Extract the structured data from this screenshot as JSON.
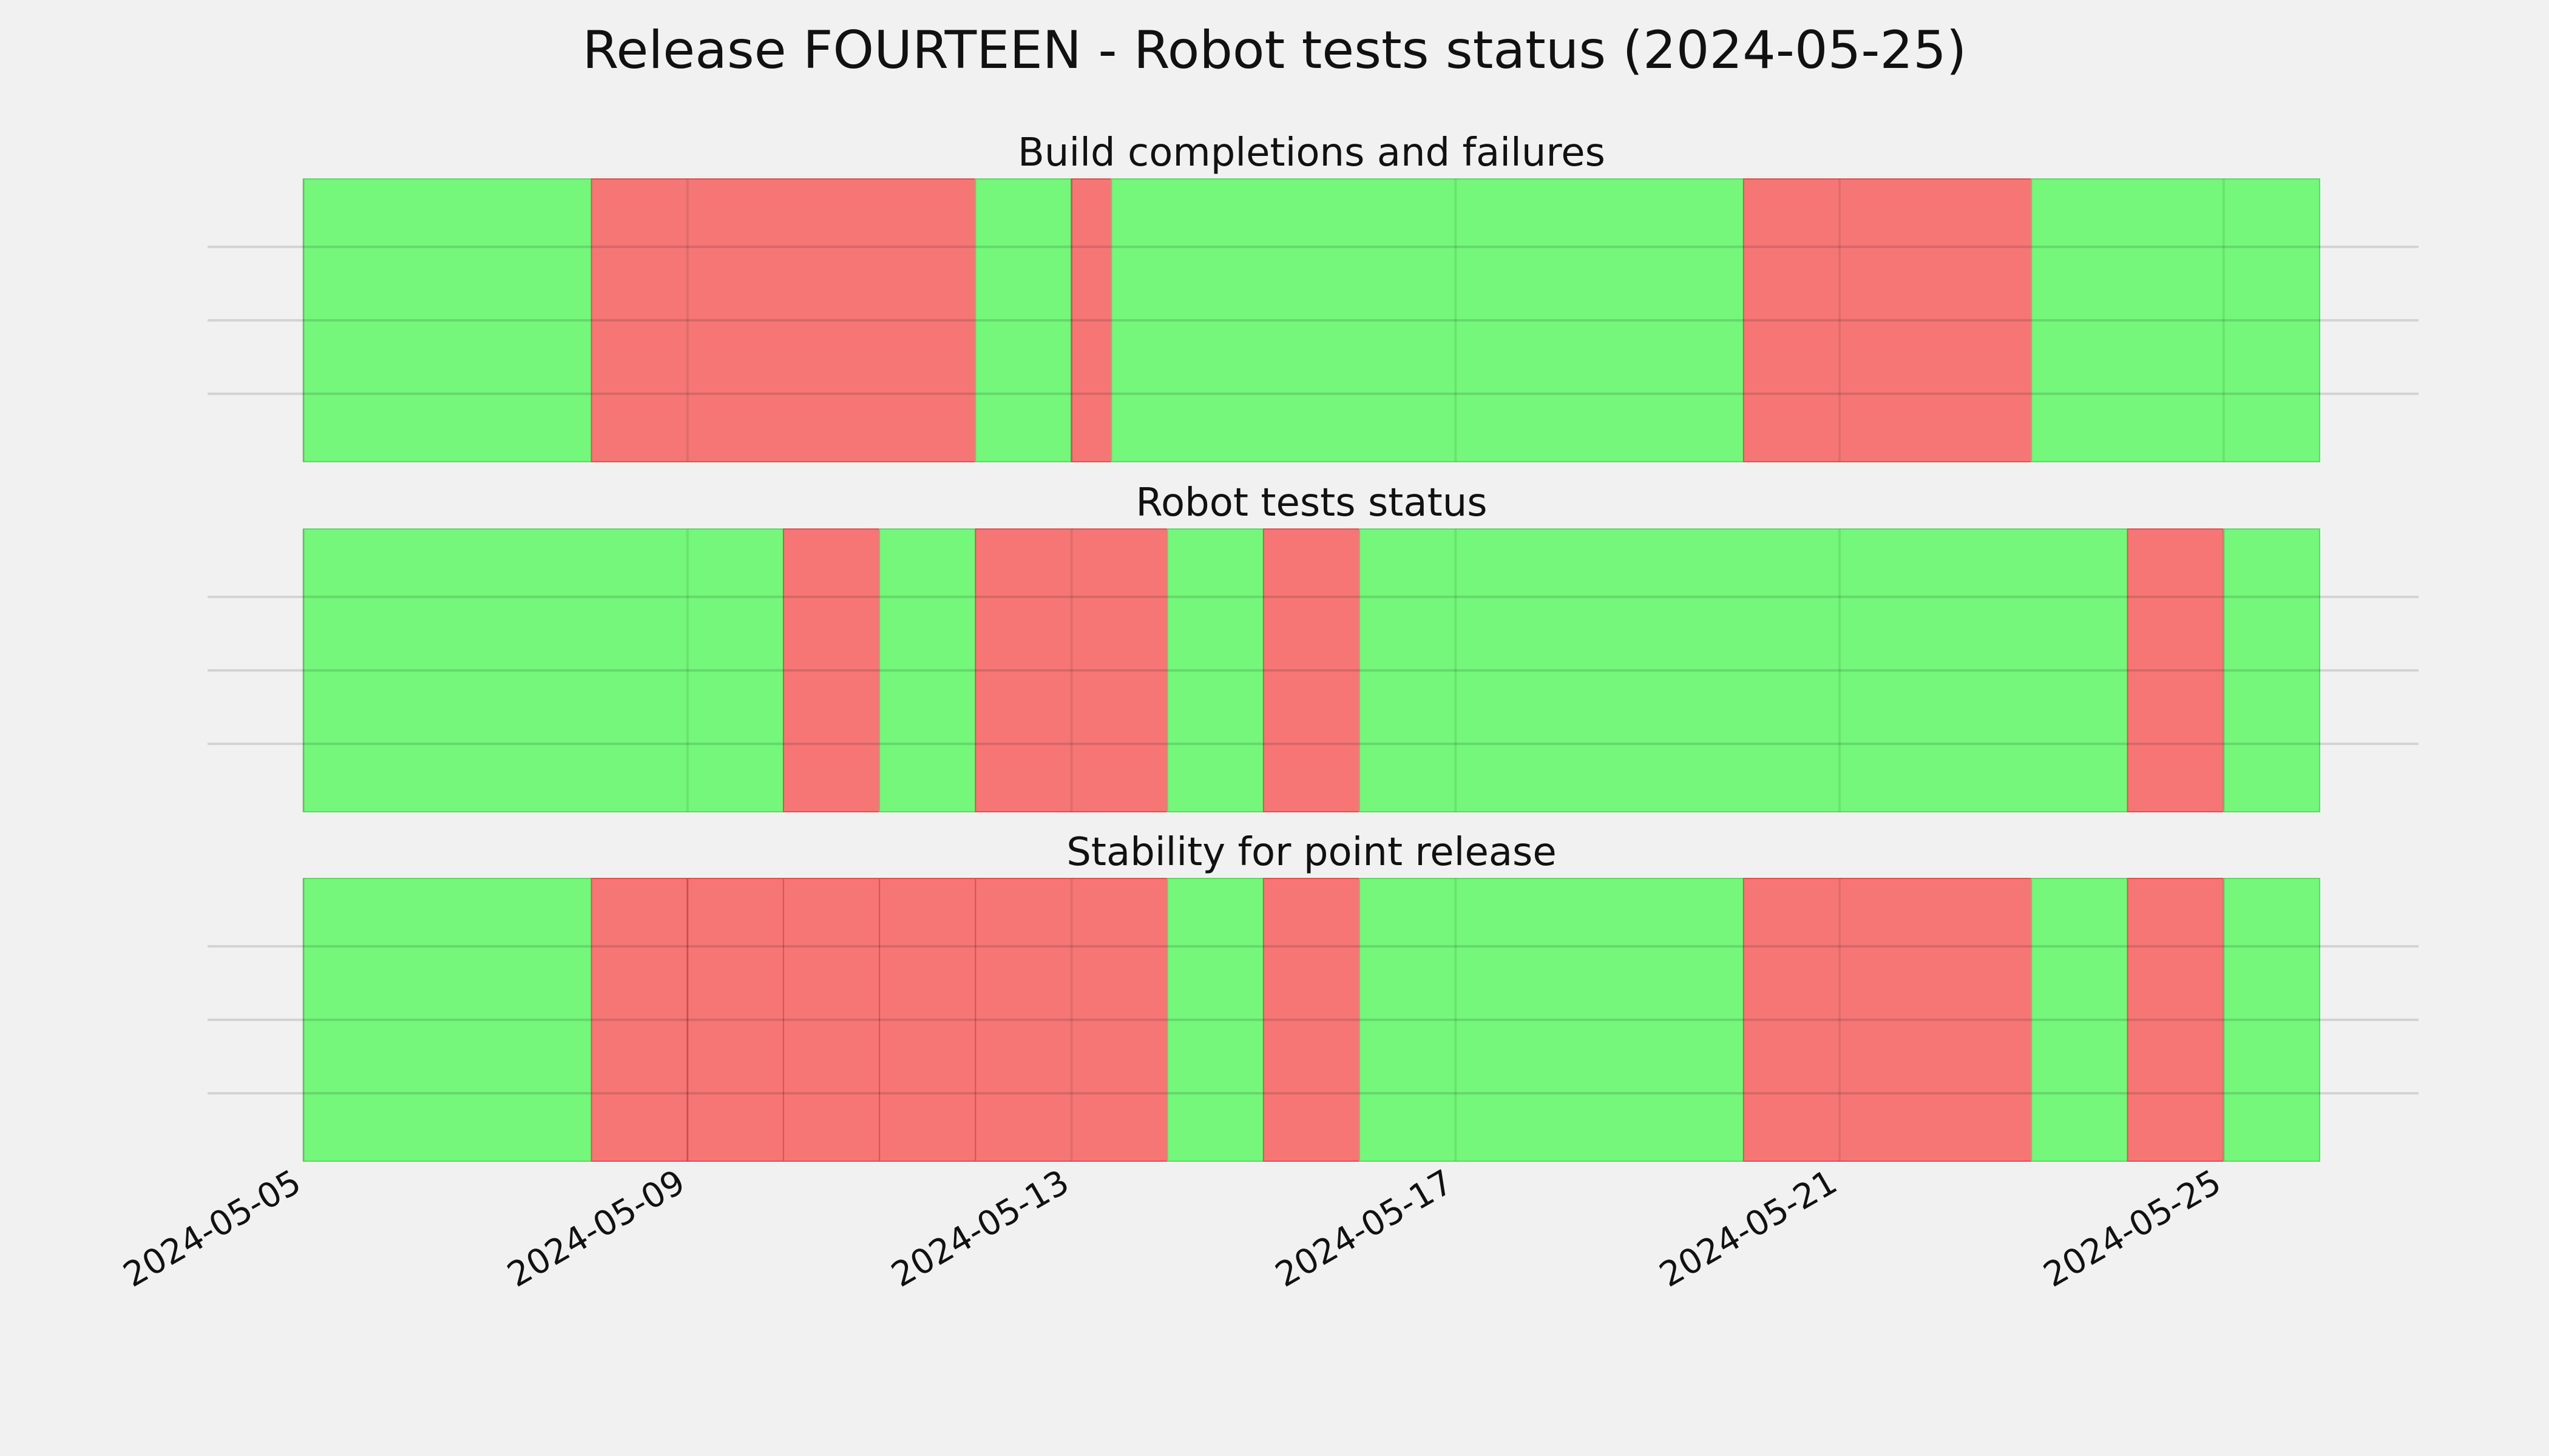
{
  "title": "Release FOURTEEN - Robot tests status (2024-05-25)",
  "colors": {
    "pass": "#74f77a",
    "fail": "#f67676",
    "background": "#f1f1f1",
    "grid": "#c8c8c8"
  },
  "chart_data": {
    "type": "timeline",
    "x_axis": {
      "type": "date",
      "range": [
        "2024-05-05",
        "2024-05-26"
      ],
      "ticks": [
        "2024-05-05",
        "2024-05-09",
        "2024-05-13",
        "2024-05-17",
        "2024-05-21",
        "2024-05-25"
      ],
      "tick_rotation_deg": 30
    },
    "grid": true,
    "panels": [
      {
        "title": "Build completions and failures",
        "segments": [
          {
            "start": "2024-05-05",
            "end": "2024-05-08",
            "status": "pass"
          },
          {
            "start": "2024-05-08",
            "end": "2024-05-12",
            "status": "fail"
          },
          {
            "start": "2024-05-12",
            "end": "2024-05-13",
            "status": "pass"
          },
          {
            "start": "2024-05-13",
            "end": "2024-05-13 10:00",
            "status": "fail"
          },
          {
            "start": "2024-05-13 10:00",
            "end": "2024-05-20",
            "status": "pass"
          },
          {
            "start": "2024-05-20",
            "end": "2024-05-23",
            "status": "fail"
          },
          {
            "start": "2024-05-23",
            "end": "2024-05-26",
            "status": "pass"
          }
        ]
      },
      {
        "title": "Robot tests status",
        "segments": [
          {
            "start": "2024-05-05",
            "end": "2024-05-10",
            "status": "pass"
          },
          {
            "start": "2024-05-10",
            "end": "2024-05-11",
            "status": "fail"
          },
          {
            "start": "2024-05-11",
            "end": "2024-05-12",
            "status": "pass"
          },
          {
            "start": "2024-05-12",
            "end": "2024-05-14",
            "status": "fail"
          },
          {
            "start": "2024-05-14",
            "end": "2024-05-15",
            "status": "pass"
          },
          {
            "start": "2024-05-15",
            "end": "2024-05-16",
            "status": "fail"
          },
          {
            "start": "2024-05-16",
            "end": "2024-05-24",
            "status": "pass"
          },
          {
            "start": "2024-05-24",
            "end": "2024-05-25",
            "status": "fail"
          },
          {
            "start": "2024-05-25",
            "end": "2024-05-26",
            "status": "pass"
          }
        ]
      },
      {
        "title": "Stability for point release",
        "segments": [
          {
            "start": "2024-05-05",
            "end": "2024-05-08",
            "status": "pass"
          },
          {
            "start": "2024-05-08",
            "end": "2024-05-09",
            "status": "fail"
          },
          {
            "start": "2024-05-09",
            "end": "2024-05-10",
            "status": "fail"
          },
          {
            "start": "2024-05-10",
            "end": "2024-05-11",
            "status": "fail"
          },
          {
            "start": "2024-05-11",
            "end": "2024-05-12",
            "status": "fail"
          },
          {
            "start": "2024-05-12",
            "end": "2024-05-14",
            "status": "fail"
          },
          {
            "start": "2024-05-14",
            "end": "2024-05-15",
            "status": "pass"
          },
          {
            "start": "2024-05-15",
            "end": "2024-05-16",
            "status": "fail"
          },
          {
            "start": "2024-05-16",
            "end": "2024-05-20",
            "status": "pass"
          },
          {
            "start": "2024-05-20",
            "end": "2024-05-23",
            "status": "fail"
          },
          {
            "start": "2024-05-23",
            "end": "2024-05-24",
            "status": "pass"
          },
          {
            "start": "2024-05-24",
            "end": "2024-05-25",
            "status": "fail"
          },
          {
            "start": "2024-05-25",
            "end": "2024-05-26",
            "status": "pass"
          }
        ]
      }
    ]
  }
}
